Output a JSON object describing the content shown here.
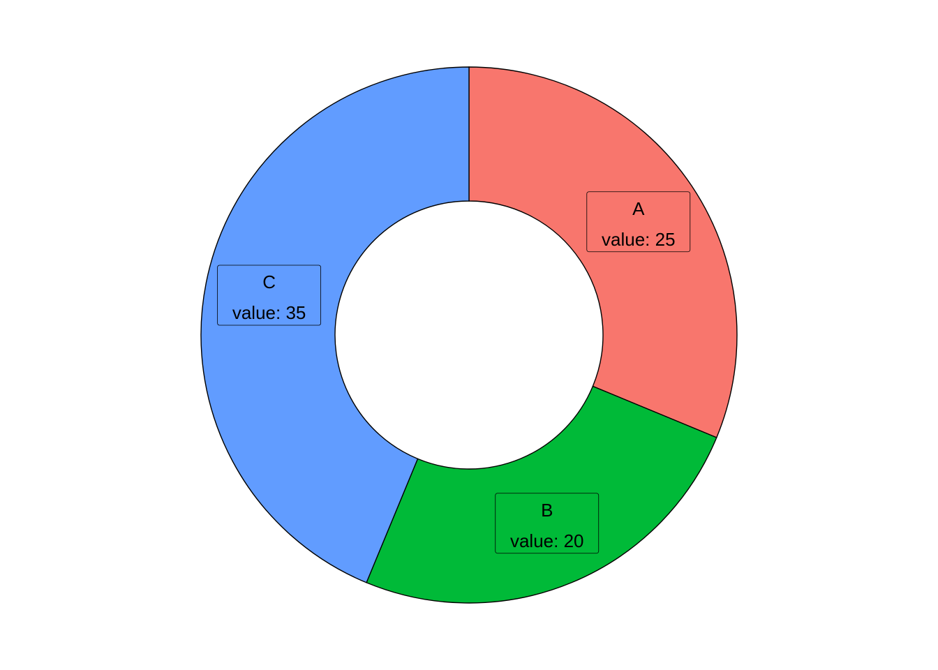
{
  "chart_data": {
    "type": "pie",
    "variant": "donut",
    "title": "",
    "value_prefix": "value: ",
    "slices": [
      {
        "label": "A",
        "value": 25,
        "color": "#F8766D"
      },
      {
        "label": "B",
        "value": 20,
        "color": "#00BA38"
      },
      {
        "label": "C",
        "value": 35,
        "color": "#619CFF"
      }
    ],
    "legend": "none",
    "grid": false
  }
}
